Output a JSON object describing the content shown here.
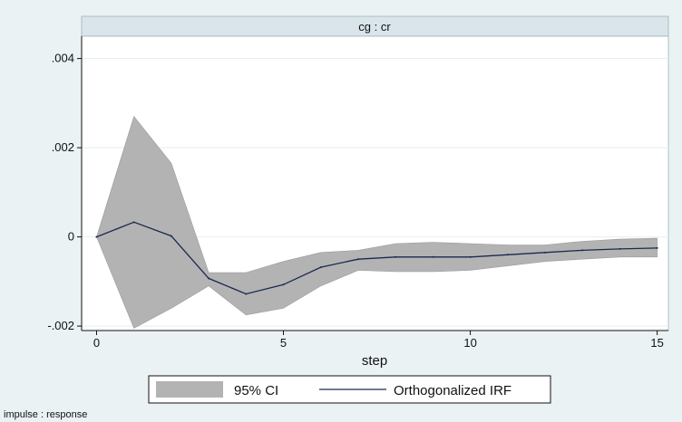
{
  "chart_data": {
    "type": "line",
    "panel_title": "cg : cr",
    "xlabel": "step",
    "ylabel": "",
    "xlim": [
      -0.4,
      15.3
    ],
    "ylim": [
      -0.0021,
      0.0045
    ],
    "xticks": [
      0,
      5,
      10,
      15
    ],
    "yticks": [
      -0.002,
      0,
      0.002,
      0.004
    ],
    "ytick_labels": [
      "-.002",
      "0",
      ".002",
      ".004"
    ],
    "grid": true,
    "legend_position": "bottom",
    "x": [
      0,
      1,
      2,
      3,
      4,
      5,
      6,
      7,
      8,
      9,
      10,
      11,
      12,
      13,
      14,
      15
    ],
    "series": [
      {
        "name": "95% CI",
        "kind": "band",
        "upper": [
          0,
          0.0027,
          0.00165,
          -0.0008,
          -0.0008,
          -0.00055,
          -0.00035,
          -0.0003,
          -0.00015,
          -0.00012,
          -0.00015,
          -0.00018,
          -0.00018,
          -0.0001,
          -5e-05,
          -3e-05
        ],
        "lower": [
          0,
          -0.00205,
          -0.0016,
          -0.0011,
          -0.00175,
          -0.0016,
          -0.0011,
          -0.00075,
          -0.00078,
          -0.00078,
          -0.00075,
          -0.00065,
          -0.00055,
          -0.0005,
          -0.00045,
          -0.00045
        ]
      },
      {
        "name": "Orthogonalized IRF",
        "kind": "line",
        "values": [
          0,
          0.00033,
          2e-05,
          -0.00093,
          -0.00128,
          -0.00107,
          -0.00068,
          -0.0005,
          -0.00045,
          -0.00045,
          -0.00045,
          -0.0004,
          -0.00035,
          -0.0003,
          -0.00027,
          -0.00025
        ]
      }
    ],
    "colors": {
      "band": "#b3b3b3",
      "line": "#1a2a4e",
      "plot_bg": "#ffffff",
      "grid": "#e6eef0",
      "page_bg": "#eaf2f3",
      "header_bg": "#d9e5ea"
    }
  },
  "footer_note": "impulse : response"
}
